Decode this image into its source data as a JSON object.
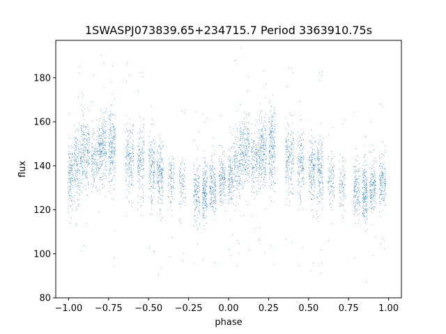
{
  "chart_data": {
    "type": "scatter",
    "title": "1SWASPJ073839.65+234715.7 Period 3363910.75s",
    "xlabel": "phase",
    "ylabel": "flux",
    "xlim": [
      -1.08,
      1.08
    ],
    "ylim": [
      80,
      197
    ],
    "x_ticks": [
      -1.0,
      -0.75,
      -0.5,
      -0.25,
      0.0,
      0.25,
      0.5,
      0.75,
      1.0
    ],
    "x_tick_labels": [
      "−1.00",
      "−0.75",
      "−0.50",
      "−0.25",
      "0.00",
      "0.25",
      "0.50",
      "0.75",
      "1.00"
    ],
    "y_ticks": [
      80,
      100,
      120,
      140,
      160,
      180
    ],
    "y_tick_labels": [
      "80",
      "100",
      "120",
      "140",
      "160",
      "180"
    ],
    "grid": false,
    "marker_color": "#1f77b4",
    "series": [
      {
        "clusters": [
          {
            "x_center": -0.99,
            "x_width": 0.015,
            "y_mean": 135,
            "y_sd": 7,
            "n": 140
          },
          {
            "x_center": -0.95,
            "x_width": 0.02,
            "y_mean": 141,
            "y_sd": 8,
            "n": 160
          },
          {
            "x_center": -0.9,
            "x_width": 0.03,
            "y_mean": 146,
            "y_sd": 8,
            "n": 260
          },
          {
            "x_center": -0.84,
            "x_width": 0.02,
            "y_mean": 143,
            "y_sd": 7,
            "n": 140
          },
          {
            "x_center": -0.79,
            "x_width": 0.025,
            "y_mean": 147,
            "y_sd": 8,
            "n": 260
          },
          {
            "x_center": -0.73,
            "x_width": 0.02,
            "y_mean": 148,
            "y_sd": 9,
            "n": 240
          },
          {
            "x_center": -0.62,
            "x_width": 0.025,
            "y_mean": 143,
            "y_sd": 8,
            "n": 200
          },
          {
            "x_center": -0.55,
            "x_width": 0.02,
            "y_mean": 141,
            "y_sd": 8,
            "n": 160
          },
          {
            "x_center": -0.48,
            "x_width": 0.02,
            "y_mean": 139,
            "y_sd": 8,
            "n": 180
          },
          {
            "x_center": -0.43,
            "x_width": 0.02,
            "y_mean": 137,
            "y_sd": 8,
            "n": 190
          },
          {
            "x_center": -0.36,
            "x_width": 0.02,
            "y_mean": 134,
            "y_sd": 6,
            "n": 100
          },
          {
            "x_center": -0.29,
            "x_width": 0.02,
            "y_mean": 131,
            "y_sd": 6,
            "n": 90
          },
          {
            "x_center": -0.2,
            "x_width": 0.02,
            "y_mean": 128,
            "y_sd": 7,
            "n": 160
          },
          {
            "x_center": -0.15,
            "x_width": 0.015,
            "y_mean": 127,
            "y_sd": 7,
            "n": 200
          },
          {
            "x_center": -0.1,
            "x_width": 0.02,
            "y_mean": 130,
            "y_sd": 6,
            "n": 180
          },
          {
            "x_center": -0.04,
            "x_width": 0.02,
            "y_mean": 133,
            "y_sd": 6,
            "n": 170
          },
          {
            "x_center": 0.01,
            "x_width": 0.015,
            "y_mean": 135,
            "y_sd": 7,
            "n": 140
          },
          {
            "x_center": 0.05,
            "x_width": 0.02,
            "y_mean": 141,
            "y_sd": 8,
            "n": 160
          },
          {
            "x_center": 0.1,
            "x_width": 0.03,
            "y_mean": 146,
            "y_sd": 8,
            "n": 260
          },
          {
            "x_center": 0.16,
            "x_width": 0.02,
            "y_mean": 143,
            "y_sd": 7,
            "n": 140
          },
          {
            "x_center": 0.21,
            "x_width": 0.025,
            "y_mean": 147,
            "y_sd": 8,
            "n": 260
          },
          {
            "x_center": 0.27,
            "x_width": 0.02,
            "y_mean": 148,
            "y_sd": 9,
            "n": 240
          },
          {
            "x_center": 0.38,
            "x_width": 0.025,
            "y_mean": 143,
            "y_sd": 8,
            "n": 200
          },
          {
            "x_center": 0.45,
            "x_width": 0.02,
            "y_mean": 141,
            "y_sd": 8,
            "n": 160
          },
          {
            "x_center": 0.52,
            "x_width": 0.02,
            "y_mean": 139,
            "y_sd": 8,
            "n": 180
          },
          {
            "x_center": 0.57,
            "x_width": 0.02,
            "y_mean": 137,
            "y_sd": 8,
            "n": 190
          },
          {
            "x_center": 0.64,
            "x_width": 0.02,
            "y_mean": 134,
            "y_sd": 6,
            "n": 100
          },
          {
            "x_center": 0.71,
            "x_width": 0.02,
            "y_mean": 131,
            "y_sd": 6,
            "n": 90
          },
          {
            "x_center": 0.8,
            "x_width": 0.02,
            "y_mean": 128,
            "y_sd": 7,
            "n": 160
          },
          {
            "x_center": 0.85,
            "x_width": 0.015,
            "y_mean": 127,
            "y_sd": 7,
            "n": 200
          },
          {
            "x_center": 0.9,
            "x_width": 0.02,
            "y_mean": 130,
            "y_sd": 6,
            "n": 180
          },
          {
            "x_center": 0.96,
            "x_width": 0.02,
            "y_mean": 133,
            "y_sd": 6,
            "n": 170
          }
        ]
      }
    ]
  }
}
